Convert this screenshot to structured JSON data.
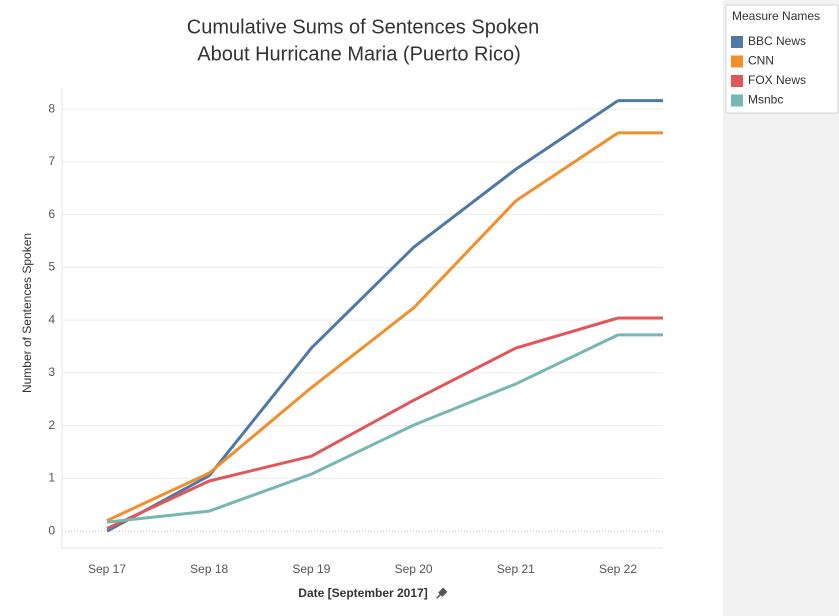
{
  "chart_data": {
    "type": "line",
    "title": [
      "Cumulative Sums of Sentences Spoken",
      "About Hurricane Maria (Puerto Rico)"
    ],
    "x_label": "Date [September 2017]",
    "y_label": "Number of Sentences Spoken",
    "legend_title": "Measure Names",
    "categories": [
      "Sep 17",
      "Sep 18",
      "Sep 19",
      "Sep 20",
      "Sep 21",
      "Sep 22"
    ],
    "series": [
      {
        "name": "BBC News",
        "color": "#4e79a7",
        "values": [
          0,
          1.05,
          3.47,
          5.38,
          6.86,
          8.16
        ]
      },
      {
        "name": "CNN",
        "color": "#f28e2b",
        "values": [
          0.2,
          1.1,
          2.72,
          4.23,
          6.26,
          7.55
        ]
      },
      {
        "name": "FOX News",
        "color": "#e15759",
        "values": [
          0.05,
          0.95,
          1.42,
          2.48,
          3.47,
          4.04
        ]
      },
      {
        "name": "Msnbc",
        "color": "#76b7b2",
        "values": [
          0.17,
          0.38,
          1.08,
          2.01,
          2.79,
          3.72
        ]
      }
    ],
    "ylim": [
      -0.32,
      8.4
    ],
    "yticks": [
      0,
      1,
      2,
      3,
      4,
      5,
      6,
      7,
      8
    ],
    "grid": true,
    "legend": "right"
  }
}
